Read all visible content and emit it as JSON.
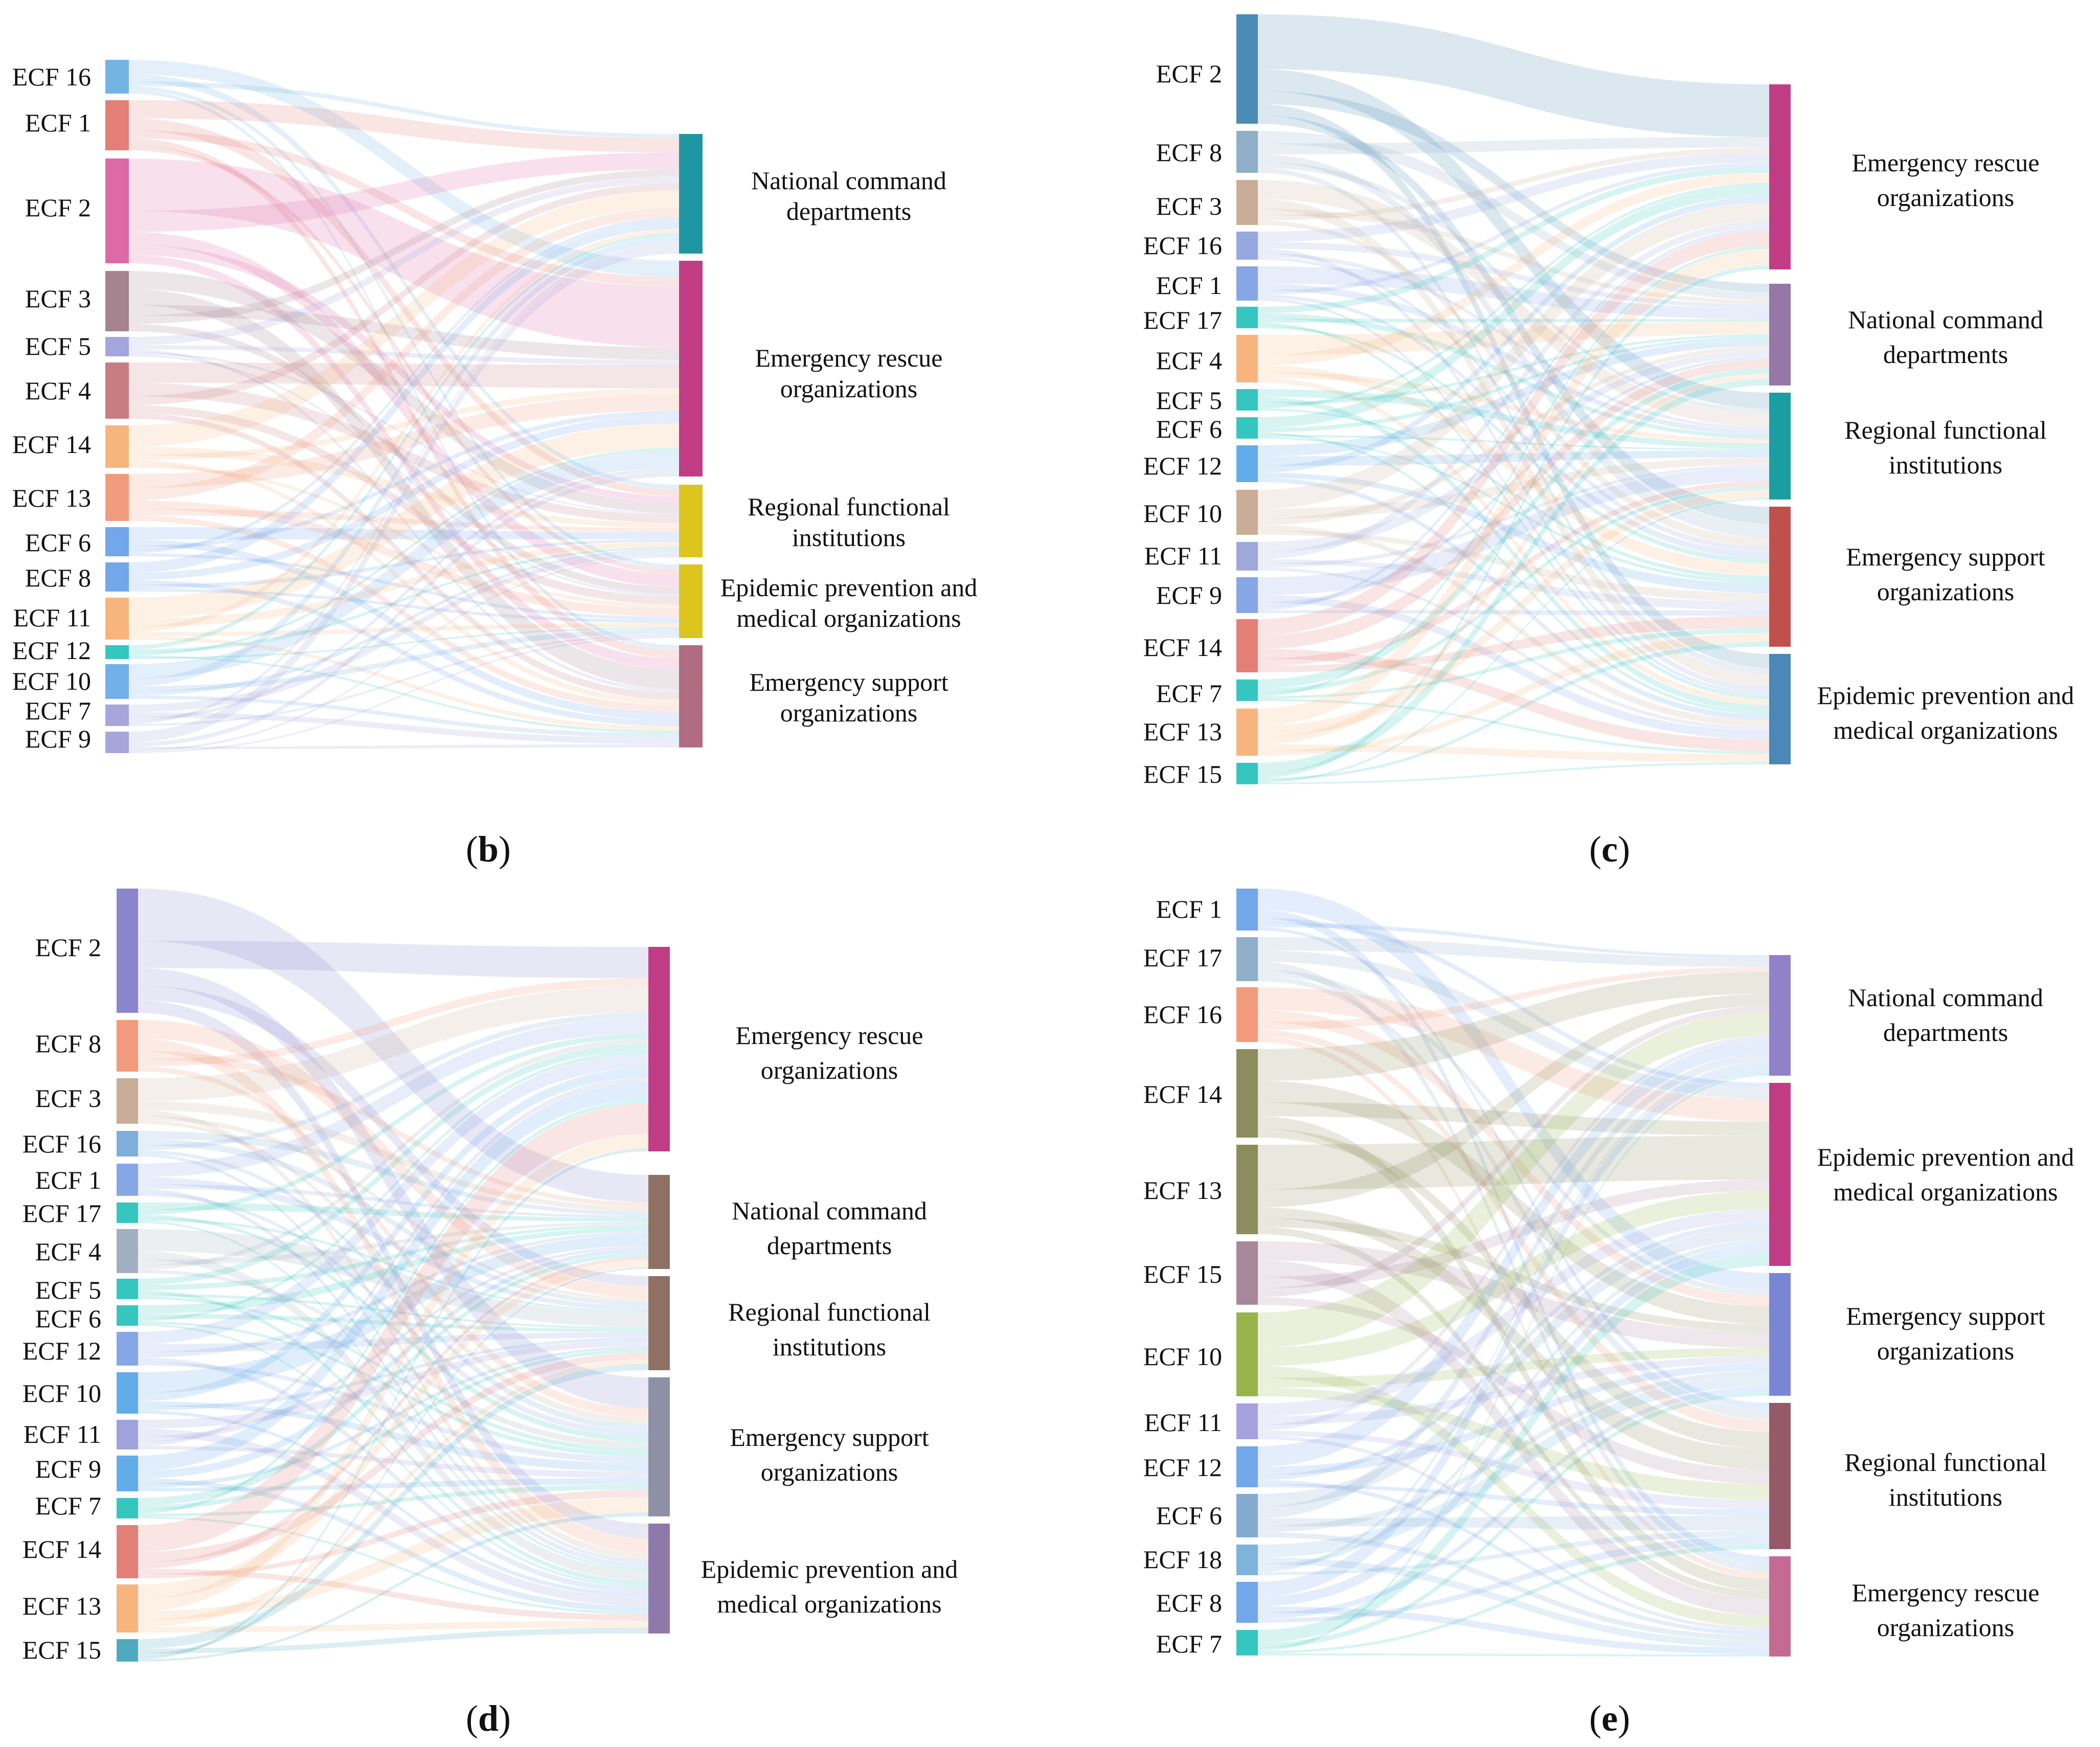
{
  "figure": {
    "panels": [
      {
        "letter": "b",
        "sources": [
          {
            "id": "s16",
            "label": "ECF 16",
            "color": "#74b4e3"
          },
          {
            "id": "s1",
            "label": "ECF 1",
            "color": "#e37f77"
          },
          {
            "id": "s2",
            "label": "ECF 2",
            "color": "#dc6aa6"
          },
          {
            "id": "s3",
            "label": "ECF 3",
            "color": "#a5838f"
          },
          {
            "id": "s5",
            "label": "ECF 5",
            "color": "#a3a6dd"
          },
          {
            "id": "s4",
            "label": "ECF 4",
            "color": "#c97d83"
          },
          {
            "id": "s14",
            "label": "ECF 14",
            "color": "#f7b57d"
          },
          {
            "id": "s13",
            "label": "ECF 13",
            "color": "#f29b7c"
          },
          {
            "id": "s6",
            "label": "ECF 6",
            "color": "#72a7ea"
          },
          {
            "id": "s8",
            "label": "ECF 8",
            "color": "#72a7ea"
          },
          {
            "id": "s11",
            "label": "ECF 11",
            "color": "#f7b57d"
          },
          {
            "id": "s12",
            "label": "ECF 12",
            "color": "#36c6c0"
          },
          {
            "id": "s10",
            "label": "ECF 10",
            "color": "#72b0ea"
          },
          {
            "id": "s7",
            "label": "ECF 7",
            "color": "#a6a6dc"
          },
          {
            "id": "s9",
            "label": "ECF 9",
            "color": "#a6a6dc"
          }
        ],
        "targets": [
          {
            "id": "t1",
            "lines": [
              "National command",
              "departments"
            ],
            "color": "#1f97a2"
          },
          {
            "id": "t2",
            "lines": [
              "Emergency rescue",
              "organizations"
            ],
            "color": "#c03d86"
          },
          {
            "id": "t3",
            "lines": [
              "Regional functional",
              "institutions"
            ],
            "color": "#dcc51d"
          },
          {
            "id": "t4",
            "lines": [
              "Epidemic prevention and",
              "medical organizations"
            ],
            "color": "#dcc51d"
          },
          {
            "id": "t5",
            "lines": [
              "Emergency support",
              "organizations"
            ],
            "color": "#b06c80"
          }
        ]
      },
      {
        "letter": "c",
        "sources": [
          {
            "id": "s2",
            "label": "ECF 2",
            "color": "#4a8cb5"
          },
          {
            "id": "s8",
            "label": "ECF 8",
            "color": "#8faec8"
          },
          {
            "id": "s3",
            "label": "ECF 3",
            "color": "#c9ad96"
          },
          {
            "id": "s16",
            "label": "ECF 16",
            "color": "#96a8e0"
          },
          {
            "id": "s1",
            "label": "ECF 1",
            "color": "#86a6e6"
          },
          {
            "id": "s17",
            "label": "ECF 17",
            "color": "#36c6c0"
          },
          {
            "id": "s4",
            "label": "ECF 4",
            "color": "#f7b57d"
          },
          {
            "id": "s5",
            "label": "ECF 5",
            "color": "#36c6c0"
          },
          {
            "id": "s6",
            "label": "ECF 6",
            "color": "#36c6c0"
          },
          {
            "id": "s12",
            "label": "ECF 12",
            "color": "#63acea"
          },
          {
            "id": "s10",
            "label": "ECF 10",
            "color": "#c9ad96"
          },
          {
            "id": "s11",
            "label": "ECF 11",
            "color": "#a0a8da"
          },
          {
            "id": "s9",
            "label": "ECF 9",
            "color": "#86a6e6"
          },
          {
            "id": "s14",
            "label": "ECF 14",
            "color": "#e37f77"
          },
          {
            "id": "s7",
            "label": "ECF 7",
            "color": "#36c6c0"
          },
          {
            "id": "s13",
            "label": "ECF 13",
            "color": "#f7b57d"
          },
          {
            "id": "s15",
            "label": "ECF 15",
            "color": "#36c6c0"
          }
        ],
        "targets": [
          {
            "id": "t1",
            "lines": [
              "Emergency rescue",
              "organizations"
            ],
            "color": "#c03d86"
          },
          {
            "id": "t2",
            "lines": [
              "National command",
              "departments"
            ],
            "color": "#9677a8"
          },
          {
            "id": "t3",
            "lines": [
              "Regional functional",
              "institutions"
            ],
            "color": "#1a9ea2"
          },
          {
            "id": "t4",
            "lines": [
              "Emergency support",
              "organizations"
            ],
            "color": "#c1504d"
          },
          {
            "id": "t5",
            "lines": [
              "Epidemic prevention and",
              "medical organizations"
            ],
            "color": "#4a88b5"
          }
        ]
      },
      {
        "letter": "d",
        "sources": [
          {
            "id": "s2",
            "label": "ECF 2",
            "color": "#8a86cc"
          },
          {
            "id": "s8",
            "label": "ECF 8",
            "color": "#f29b7c"
          },
          {
            "id": "s3",
            "label": "ECF 3",
            "color": "#c9ad96"
          },
          {
            "id": "s16",
            "label": "ECF 16",
            "color": "#7eaedc"
          },
          {
            "id": "s1",
            "label": "ECF 1",
            "color": "#86a6e6"
          },
          {
            "id": "s17",
            "label": "ECF 17",
            "color": "#36c6c0"
          },
          {
            "id": "s4",
            "label": "ECF 4",
            "color": "#a2afc0"
          },
          {
            "id": "s5",
            "label": "ECF 5",
            "color": "#36c6c0"
          },
          {
            "id": "s6",
            "label": "ECF 6",
            "color": "#36c6c0"
          },
          {
            "id": "s12",
            "label": "ECF 12",
            "color": "#86a6e6"
          },
          {
            "id": "s10",
            "label": "ECF 10",
            "color": "#63acea"
          },
          {
            "id": "s11",
            "label": "ECF 11",
            "color": "#a0a2dc"
          },
          {
            "id": "s9",
            "label": "ECF 9",
            "color": "#63acea"
          },
          {
            "id": "s7",
            "label": "ECF 7",
            "color": "#36c6c0"
          },
          {
            "id": "s14",
            "label": "ECF 14",
            "color": "#e37f77"
          },
          {
            "id": "s13",
            "label": "ECF 13",
            "color": "#f7b57d"
          },
          {
            "id": "s15",
            "label": "ECF 15",
            "color": "#4faabf"
          }
        ],
        "targets": [
          {
            "id": "t1",
            "lines": [
              "Emergency rescue",
              "organizations"
            ],
            "color": "#c03d86"
          },
          {
            "id": "t2",
            "lines": [
              "National command",
              "departments"
            ],
            "color": "#8e7162"
          },
          {
            "id": "t3",
            "lines": [
              "Regional functional",
              "institutions"
            ],
            "color": "#8e7162"
          },
          {
            "id": "t4",
            "lines": [
              "Emergency support",
              "organizations"
            ],
            "color": "#8e91a6"
          },
          {
            "id": "t5",
            "lines": [
              "Epidemic prevention and",
              "medical organizations"
            ],
            "color": "#8e7aaa"
          }
        ]
      },
      {
        "letter": "e",
        "sources": [
          {
            "id": "s1",
            "label": "ECF 1",
            "color": "#72a7ea"
          },
          {
            "id": "s17",
            "label": "ECF 17",
            "color": "#8faec8"
          },
          {
            "id": "s16",
            "label": "ECF 16",
            "color": "#f29b7c"
          },
          {
            "id": "s14",
            "label": "ECF 14",
            "color": "#8c8c5c"
          },
          {
            "id": "s13",
            "label": "ECF 13",
            "color": "#8c8c5c"
          },
          {
            "id": "s15",
            "label": "ECF 15",
            "color": "#a8879a"
          },
          {
            "id": "s10",
            "label": "ECF 10",
            "color": "#98b34c"
          },
          {
            "id": "s11",
            "label": "ECF 11",
            "color": "#a6a2e0"
          },
          {
            "id": "s12",
            "label": "ECF 12",
            "color": "#72a7ea"
          },
          {
            "id": "s6",
            "label": "ECF 6",
            "color": "#85aad0"
          },
          {
            "id": "s18",
            "label": "ECF 18",
            "color": "#7eb3da"
          },
          {
            "id": "s8",
            "label": "ECF 8",
            "color": "#72a7ea"
          },
          {
            "id": "s7",
            "label": "ECF 7",
            "color": "#36c6c0"
          }
        ],
        "targets": [
          {
            "id": "t1",
            "lines": [
              "National command",
              "departments"
            ],
            "color": "#9181c9"
          },
          {
            "id": "t2",
            "lines": [
              "Epidemic prevention and",
              "medical organizations"
            ],
            "color": "#c03d86"
          },
          {
            "id": "t3",
            "lines": [
              "Emergency support",
              "organizations"
            ],
            "color": "#7a86d4"
          },
          {
            "id": "t4",
            "lines": [
              "Regional functional",
              "institutions"
            ],
            "color": "#965968"
          },
          {
            "id": "t5",
            "lines": [
              "Emergency rescue",
              "organizations"
            ],
            "color": "#c46b93"
          }
        ]
      }
    ]
  }
}
